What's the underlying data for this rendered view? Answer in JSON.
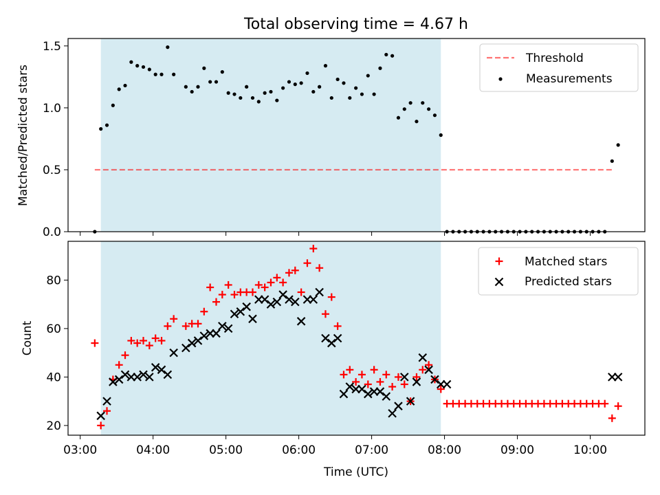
{
  "figure_title": "Total observing time = 4.67 h",
  "colors": {
    "shade": "#add8e6",
    "threshold": "#ff0000",
    "measurement": "#000000",
    "matched": "#ff0000",
    "predicted": "#000000"
  },
  "chart_data": [
    {
      "type": "scatter",
      "title": "Total observing time = 4.67 h",
      "xlabel": "",
      "ylabel": "Matched/Predicted stars",
      "xlim": [
        "02:50",
        "10:45"
      ],
      "ylim": [
        0,
        1.56
      ],
      "yticks": [
        0.0,
        0.5,
        1.0,
        1.5
      ],
      "ytick_labels": [
        "0.0",
        "0.5",
        "1.0",
        "1.5"
      ],
      "grid": false,
      "legend_position": "upper right",
      "shaded_span": [
        "03:17",
        "07:57"
      ],
      "threshold": {
        "name": "Threshold",
        "y": 0.5,
        "x_range": [
          "03:12",
          "10:18"
        ]
      },
      "series": [
        {
          "name": "Measurements",
          "points": [
            [
              "03:12",
              0.0
            ],
            [
              "03:17",
              0.83
            ],
            [
              "03:22",
              0.86
            ],
            [
              "03:27",
              1.02
            ],
            [
              "03:32",
              1.15
            ],
            [
              "03:37",
              1.18
            ],
            [
              "03:42",
              1.37
            ],
            [
              "03:47",
              1.34
            ],
            [
              "03:52",
              1.33
            ],
            [
              "03:57",
              1.31
            ],
            [
              "04:02",
              1.27
            ],
            [
              "04:07",
              1.27
            ],
            [
              "04:12",
              1.49
            ],
            [
              "04:17",
              1.27
            ],
            [
              "04:27",
              1.17
            ],
            [
              "04:32",
              1.13
            ],
            [
              "04:37",
              1.17
            ],
            [
              "04:42",
              1.32
            ],
            [
              "04:47",
              1.21
            ],
            [
              "04:52",
              1.21
            ],
            [
              "04:57",
              1.29
            ],
            [
              "05:02",
              1.12
            ],
            [
              "05:07",
              1.11
            ],
            [
              "05:12",
              1.08
            ],
            [
              "05:17",
              1.17
            ],
            [
              "05:22",
              1.08
            ],
            [
              "05:27",
              1.05
            ],
            [
              "05:32",
              1.12
            ],
            [
              "05:37",
              1.13
            ],
            [
              "05:42",
              1.06
            ],
            [
              "05:47",
              1.16
            ],
            [
              "05:52",
              1.21
            ],
            [
              "05:57",
              1.19
            ],
            [
              "06:02",
              1.2
            ],
            [
              "06:07",
              1.28
            ],
            [
              "06:12",
              1.13
            ],
            [
              "06:17",
              1.17
            ],
            [
              "06:22",
              1.34
            ],
            [
              "06:27",
              1.08
            ],
            [
              "06:32",
              1.23
            ],
            [
              "06:37",
              1.2
            ],
            [
              "06:42",
              1.08
            ],
            [
              "06:47",
              1.16
            ],
            [
              "06:52",
              1.11
            ],
            [
              "06:57",
              1.26
            ],
            [
              "07:02",
              1.11
            ],
            [
              "07:07",
              1.32
            ],
            [
              "07:12",
              1.43
            ],
            [
              "07:17",
              1.42
            ],
            [
              "07:22",
              0.92
            ],
            [
              "07:27",
              0.99
            ],
            [
              "07:32",
              1.04
            ],
            [
              "07:37",
              0.89
            ],
            [
              "07:42",
              1.04
            ],
            [
              "07:47",
              0.99
            ],
            [
              "07:52",
              0.94
            ],
            [
              "07:57",
              0.78
            ],
            [
              "08:02",
              0.0
            ],
            [
              "08:07",
              0.0
            ],
            [
              "08:12",
              0.0
            ],
            [
              "08:17",
              0.0
            ],
            [
              "08:22",
              0.0
            ],
            [
              "08:27",
              0.0
            ],
            [
              "08:32",
              0.0
            ],
            [
              "08:37",
              0.0
            ],
            [
              "08:42",
              0.0
            ],
            [
              "08:47",
              0.0
            ],
            [
              "08:52",
              0.0
            ],
            [
              "08:57",
              0.0
            ],
            [
              "09:02",
              0.0
            ],
            [
              "09:07",
              0.0
            ],
            [
              "09:12",
              0.0
            ],
            [
              "09:17",
              0.0
            ],
            [
              "09:22",
              0.0
            ],
            [
              "09:27",
              0.0
            ],
            [
              "09:32",
              0.0
            ],
            [
              "09:37",
              0.0
            ],
            [
              "09:42",
              0.0
            ],
            [
              "09:47",
              0.0
            ],
            [
              "09:52",
              0.0
            ],
            [
              "09:57",
              0.0
            ],
            [
              "10:02",
              0.0
            ],
            [
              "10:07",
              0.0
            ],
            [
              "10:12",
              0.0
            ],
            [
              "10:18",
              0.57
            ],
            [
              "10:23",
              0.7
            ]
          ]
        }
      ]
    },
    {
      "type": "scatter",
      "title": "",
      "xlabel": "Time (UTC)",
      "ylabel": "Count",
      "xlim": [
        "02:50",
        "10:45"
      ],
      "ylim": [
        16,
        96
      ],
      "yticks": [
        20,
        40,
        60,
        80
      ],
      "ytick_labels": [
        "20",
        "40",
        "60",
        "80"
      ],
      "xticks": [
        "03:00",
        "04:00",
        "05:00",
        "06:00",
        "07:00",
        "08:00",
        "09:00",
        "10:00"
      ],
      "xtick_labels": [
        "03:00",
        "04:00",
        "05:00",
        "06:00",
        "07:00",
        "08:00",
        "09:00",
        "10:00"
      ],
      "grid": false,
      "legend_position": "upper right",
      "shaded_span": [
        "03:17",
        "07:57"
      ],
      "series": [
        {
          "name": "Matched stars",
          "marker": "plus",
          "points": [
            [
              "03:12",
              54
            ],
            [
              "03:17",
              20
            ],
            [
              "03:22",
              26
            ],
            [
              "03:27",
              39
            ],
            [
              "03:32",
              45
            ],
            [
              "03:37",
              49
            ],
            [
              "03:42",
              55
            ],
            [
              "03:47",
              54
            ],
            [
              "03:52",
              55
            ],
            [
              "03:57",
              53
            ],
            [
              "04:02",
              56
            ],
            [
              "04:07",
              55
            ],
            [
              "04:12",
              61
            ],
            [
              "04:17",
              64
            ],
            [
              "04:27",
              61
            ],
            [
              "04:32",
              62
            ],
            [
              "04:37",
              62
            ],
            [
              "04:42",
              67
            ],
            [
              "04:47",
              77
            ],
            [
              "04:52",
              71
            ],
            [
              "04:57",
              74
            ],
            [
              "05:02",
              78
            ],
            [
              "05:07",
              74
            ],
            [
              "05:12",
              75
            ],
            [
              "05:17",
              75
            ],
            [
              "05:22",
              75
            ],
            [
              "05:27",
              78
            ],
            [
              "05:32",
              77
            ],
            [
              "05:37",
              79
            ],
            [
              "05:42",
              81
            ],
            [
              "05:47",
              79
            ],
            [
              "05:52",
              83
            ],
            [
              "05:57",
              84
            ],
            [
              "06:02",
              75
            ],
            [
              "06:07",
              87
            ],
            [
              "06:12",
              93
            ],
            [
              "06:17",
              85
            ],
            [
              "06:22",
              66
            ],
            [
              "06:27",
              73
            ],
            [
              "06:32",
              61
            ],
            [
              "06:37",
              41
            ],
            [
              "06:42",
              43
            ],
            [
              "06:47",
              38
            ],
            [
              "06:52",
              41
            ],
            [
              "06:57",
              37
            ],
            [
              "07:02",
              43
            ],
            [
              "07:07",
              38
            ],
            [
              "07:12",
              41
            ],
            [
              "07:17",
              36
            ],
            [
              "07:22",
              40
            ],
            [
              "07:27",
              37
            ],
            [
              "07:32",
              30
            ],
            [
              "07:37",
              40
            ],
            [
              "07:42",
              43
            ],
            [
              "07:47",
              45
            ],
            [
              "07:52",
              39
            ],
            [
              "07:57",
              35
            ],
            [
              "08:02",
              29
            ],
            [
              "08:07",
              29
            ],
            [
              "08:12",
              29
            ],
            [
              "08:17",
              29
            ],
            [
              "08:22",
              29
            ],
            [
              "08:27",
              29
            ],
            [
              "08:32",
              29
            ],
            [
              "08:37",
              29
            ],
            [
              "08:42",
              29
            ],
            [
              "08:47",
              29
            ],
            [
              "08:52",
              29
            ],
            [
              "08:57",
              29
            ],
            [
              "09:02",
              29
            ],
            [
              "09:07",
              29
            ],
            [
              "09:12",
              29
            ],
            [
              "09:17",
              29
            ],
            [
              "09:22",
              29
            ],
            [
              "09:27",
              29
            ],
            [
              "09:32",
              29
            ],
            [
              "09:37",
              29
            ],
            [
              "09:42",
              29
            ],
            [
              "09:47",
              29
            ],
            [
              "09:52",
              29
            ],
            [
              "09:57",
              29
            ],
            [
              "10:02",
              29
            ],
            [
              "10:07",
              29
            ],
            [
              "10:12",
              29
            ],
            [
              "10:18",
              23
            ],
            [
              "10:23",
              28
            ]
          ]
        },
        {
          "name": "Predicted stars",
          "marker": "x",
          "points": [
            [
              "03:17",
              24
            ],
            [
              "03:22",
              30
            ],
            [
              "03:27",
              38
            ],
            [
              "03:32",
              39
            ],
            [
              "03:37",
              41
            ],
            [
              "03:42",
              40
            ],
            [
              "03:47",
              40
            ],
            [
              "03:52",
              41
            ],
            [
              "03:57",
              40
            ],
            [
              "04:02",
              44
            ],
            [
              "04:07",
              43
            ],
            [
              "04:12",
              41
            ],
            [
              "04:17",
              50
            ],
            [
              "04:27",
              52
            ],
            [
              "04:32",
              54
            ],
            [
              "04:37",
              55
            ],
            [
              "04:42",
              57
            ],
            [
              "04:47",
              58
            ],
            [
              "04:52",
              58
            ],
            [
              "04:57",
              61
            ],
            [
              "05:02",
              60
            ],
            [
              "05:07",
              66
            ],
            [
              "05:12",
              67
            ],
            [
              "05:17",
              69
            ],
            [
              "05:22",
              64
            ],
            [
              "05:27",
              72
            ],
            [
              "05:32",
              72
            ],
            [
              "05:37",
              70
            ],
            [
              "05:42",
              71
            ],
            [
              "05:47",
              74
            ],
            [
              "05:52",
              72
            ],
            [
              "05:57",
              71
            ],
            [
              "06:02",
              63
            ],
            [
              "06:07",
              72
            ],
            [
              "06:12",
              72
            ],
            [
              "06:17",
              75
            ],
            [
              "06:22",
              56
            ],
            [
              "06:27",
              54
            ],
            [
              "06:32",
              56
            ],
            [
              "06:37",
              33
            ],
            [
              "06:42",
              36
            ],
            [
              "06:47",
              35
            ],
            [
              "06:52",
              35
            ],
            [
              "06:57",
              33
            ],
            [
              "07:02",
              34
            ],
            [
              "07:07",
              34
            ],
            [
              "07:12",
              32
            ],
            [
              "07:17",
              25
            ],
            [
              "07:22",
              28
            ],
            [
              "07:27",
              40
            ],
            [
              "07:32",
              30
            ],
            [
              "07:37",
              38
            ],
            [
              "07:42",
              48
            ],
            [
              "07:47",
              43
            ],
            [
              "07:52",
              39
            ],
            [
              "07:57",
              37
            ],
            [
              "08:02",
              37
            ],
            [
              "10:18",
              40
            ],
            [
              "10:23",
              40
            ]
          ]
        }
      ]
    }
  ]
}
